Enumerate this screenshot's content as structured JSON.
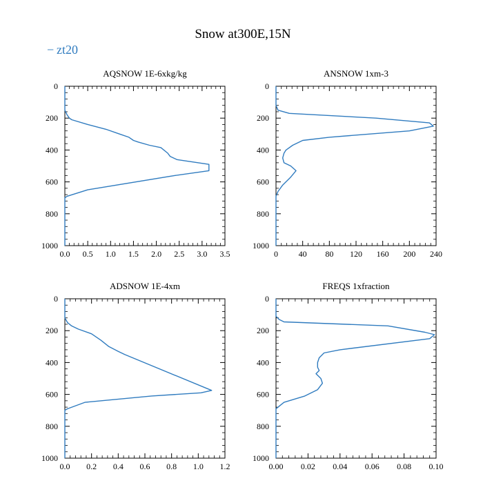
{
  "figure": {
    "title": "Snow at300E,15N",
    "legend_label": "zt20",
    "legend_dash": "−",
    "line_color": "#2f7bbf"
  },
  "chart_data": [
    {
      "type": "line",
      "title": "AQSNOW  1E-6xkg/kg",
      "xlim": [
        0,
        3.5
      ],
      "ylim": [
        1000,
        0
      ],
      "xticks": [
        0,
        0.5,
        1.0,
        1.5,
        2.0,
        2.5,
        3.0,
        3.5
      ],
      "xtick_labels": [
        "0.0",
        "0.5",
        "1.0",
        "1.5",
        "2.0",
        "2.5",
        "3.0",
        "3.5"
      ],
      "yticks": [
        0,
        200,
        400,
        600,
        800,
        1000
      ],
      "ytick_labels": [
        "0",
        "200",
        "400",
        "600",
        "800",
        "1000"
      ],
      "series": [
        {
          "name": "zt20",
          "x": [
            0,
            0,
            0.05,
            0.1,
            0.15,
            0.5,
            0.9,
            1.2,
            1.4,
            1.5,
            1.6,
            1.85,
            2.1,
            2.25,
            2.3,
            2.45,
            3.15,
            3.15,
            2.4,
            0.5,
            0.05,
            0,
            0
          ],
          "y": [
            0,
            150,
            180,
            200,
            210,
            240,
            270,
            300,
            320,
            340,
            350,
            370,
            385,
            420,
            440,
            460,
            490,
            530,
            560,
            650,
            690,
            700,
            1000
          ]
        }
      ]
    },
    {
      "type": "line",
      "title": "ANSNOW  1xm-3",
      "xlim": [
        0,
        240
      ],
      "ylim": [
        1000,
        0
      ],
      "xticks": [
        0,
        40,
        80,
        120,
        160,
        200,
        240
      ],
      "xtick_labels": [
        "0",
        "40",
        "80",
        "120",
        "160",
        "200",
        "240"
      ],
      "yticks": [
        0,
        200,
        400,
        600,
        800,
        1000
      ],
      "ytick_labels": [
        "0",
        "200",
        "400",
        "600",
        "800",
        "1000"
      ],
      "series": [
        {
          "name": "zt20",
          "x": [
            0,
            0,
            3,
            20,
            150,
            230,
            236,
            200,
            80,
            40,
            25,
            15,
            12,
            10,
            12,
            22,
            30,
            22,
            10,
            3,
            0,
            0
          ],
          "y": [
            0,
            120,
            150,
            170,
            200,
            230,
            250,
            280,
            320,
            340,
            370,
            400,
            420,
            450,
            480,
            500,
            530,
            570,
            620,
            660,
            690,
            1000
          ]
        }
      ]
    },
    {
      "type": "line",
      "title": "ADSNOW  1E-4xm",
      "xlim": [
        0,
        1.2
      ],
      "ylim": [
        1000,
        0
      ],
      "xticks": [
        0,
        0.2,
        0.4,
        0.6,
        0.8,
        1.0,
        1.2
      ],
      "xtick_labels": [
        "0.0",
        "0.2",
        "0.4",
        "0.6",
        "0.8",
        "1.0",
        "1.2"
      ],
      "yticks": [
        0,
        200,
        400,
        600,
        800,
        1000
      ],
      "ytick_labels": [
        "0",
        "200",
        "400",
        "600",
        "800",
        "1000"
      ],
      "series": [
        {
          "name": "zt20",
          "x": [
            0,
            0,
            0.02,
            0.05,
            0.1,
            0.2,
            0.27,
            0.33,
            0.4,
            0.45,
            1.1,
            1.02,
            0.65,
            0.15,
            0.02,
            0,
            0
          ],
          "y": [
            0,
            120,
            150,
            170,
            190,
            220,
            260,
            300,
            330,
            350,
            575,
            590,
            610,
            650,
            690,
            700,
            1000
          ]
        }
      ]
    },
    {
      "type": "line",
      "title": "FREQS  1xfraction",
      "xlim": [
        0,
        0.1
      ],
      "ylim": [
        1000,
        0
      ],
      "xticks": [
        0,
        0.02,
        0.04,
        0.06,
        0.08,
        0.1
      ],
      "xtick_labels": [
        "0.00",
        "0.02",
        "0.04",
        "0.06",
        "0.08",
        "0.10"
      ],
      "yticks": [
        0,
        200,
        400,
        600,
        800,
        1000
      ],
      "ytick_labels": [
        "0",
        "200",
        "400",
        "600",
        "800",
        "1000"
      ],
      "series": [
        {
          "name": "zt20",
          "x": [
            0,
            0,
            0.002,
            0.005,
            0.07,
            0.093,
            0.099,
            0.096,
            0.04,
            0.03,
            0.027,
            0.026,
            0.026,
            0.027,
            0.025,
            0.028,
            0.029,
            0.026,
            0.018,
            0.005,
            0,
            0
          ],
          "y": [
            0,
            110,
            130,
            145,
            170,
            210,
            225,
            250,
            320,
            340,
            370,
            400,
            430,
            450,
            470,
            500,
            530,
            570,
            610,
            650,
            690,
            1000
          ]
        }
      ]
    }
  ]
}
